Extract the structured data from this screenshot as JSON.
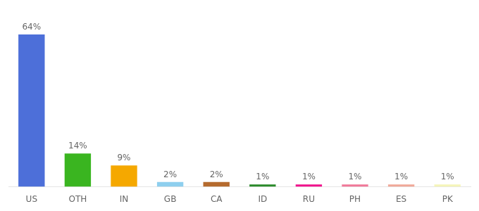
{
  "chart_data": {
    "type": "bar",
    "categories": [
      "US",
      "OTH",
      "IN",
      "GB",
      "CA",
      "ID",
      "RU",
      "PH",
      "ES",
      "PK"
    ],
    "values": [
      64,
      14,
      9,
      2,
      2,
      1,
      1,
      1,
      1,
      1
    ],
    "value_labels": [
      "64%",
      "14%",
      "9%",
      "2%",
      "2%",
      "1%",
      "1%",
      "1%",
      "1%",
      "1%"
    ],
    "colors": [
      "#4d6fd9",
      "#3ab520",
      "#f5a800",
      "#8ecfee",
      "#b56b2e",
      "#2a8a2a",
      "#f0128c",
      "#f07898",
      "#f0a898",
      "#f5f5b8"
    ],
    "ylim": [
      0,
      72
    ],
    "grid": false,
    "data_labels": true,
    "tick_labels": "x"
  }
}
